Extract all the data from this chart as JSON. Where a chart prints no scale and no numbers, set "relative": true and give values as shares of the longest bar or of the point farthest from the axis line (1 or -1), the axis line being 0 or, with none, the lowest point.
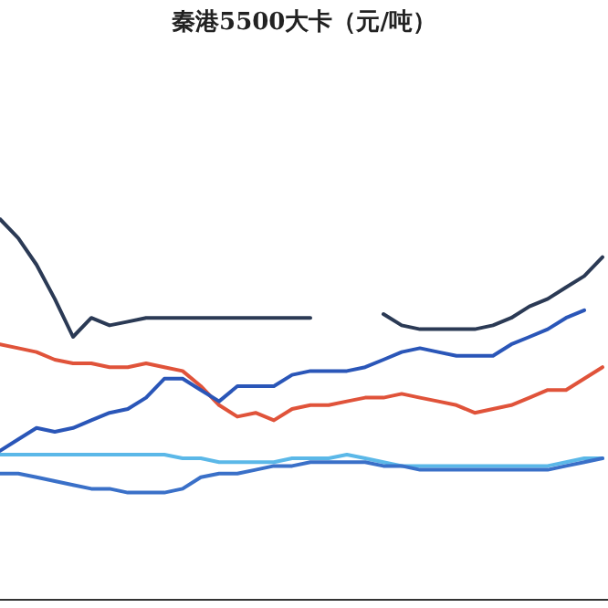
{
  "chart_data": {
    "type": "line",
    "title": "秦港5500大卡（元/吨）",
    "relative": true,
    "categories": [
      null,
      null,
      null,
      null,
      null,
      null,
      null,
      null,
      null,
      null,
      null,
      null,
      null,
      null,
      null,
      null,
      null,
      null,
      null,
      null,
      null,
      null,
      null,
      null,
      null,
      null,
      null,
      null,
      null,
      null,
      null,
      null,
      null,
      null
    ],
    "series": [
      {
        "color": "#2b3a55",
        "values": [
          1.0,
          0.95,
          0.88,
          0.79,
          0.69,
          0.74,
          0.72,
          0.73,
          0.74,
          0.74,
          0.74,
          0.74,
          0.74,
          0.74,
          0.74,
          0.74,
          0.74,
          0.74,
          null,
          null,
          null,
          0.75,
          0.72,
          0.71,
          0.71,
          0.71,
          0.71,
          0.72,
          0.74,
          0.77,
          0.79,
          0.82,
          0.85,
          0.9
        ]
      },
      {
        "color": "#e0533a",
        "values": [
          0.67,
          0.66,
          0.65,
          0.63,
          0.62,
          0.62,
          0.61,
          0.61,
          0.62,
          0.61,
          0.6,
          0.56,
          0.51,
          0.48,
          0.49,
          0.47,
          0.5,
          0.51,
          0.51,
          0.52,
          0.53,
          0.53,
          0.54,
          0.53,
          0.52,
          0.51,
          0.49,
          0.5,
          0.51,
          0.53,
          0.55,
          0.55,
          0.58,
          0.61
        ]
      },
      {
        "color": "#2a56b8",
        "values": [
          0.39,
          0.42,
          0.45,
          0.44,
          0.45,
          0.47,
          0.49,
          0.5,
          0.53,
          0.58,
          0.58,
          0.55,
          0.52,
          0.56,
          0.56,
          0.56,
          0.59,
          0.6,
          0.6,
          0.6,
          0.61,
          0.63,
          0.65,
          0.66,
          0.65,
          0.64,
          0.64,
          0.64,
          0.67,
          0.69,
          0.71,
          0.74,
          0.76,
          null
        ]
      },
      {
        "color": "#5bb8e8",
        "values": [
          0.38,
          0.38,
          0.38,
          0.38,
          0.38,
          0.38,
          0.38,
          0.38,
          0.38,
          0.38,
          0.37,
          0.37,
          0.36,
          0.36,
          0.36,
          0.36,
          0.37,
          0.37,
          0.37,
          0.38,
          0.37,
          0.36,
          0.35,
          0.35,
          0.35,
          0.35,
          0.35,
          0.35,
          0.35,
          0.35,
          0.35,
          0.36,
          0.37,
          0.37
        ]
      },
      {
        "color": "#3a70c8",
        "values": [
          0.33,
          0.33,
          0.32,
          0.31,
          0.3,
          0.29,
          0.29,
          0.28,
          0.28,
          0.28,
          0.29,
          0.32,
          0.33,
          0.33,
          0.34,
          0.35,
          0.35,
          0.36,
          0.36,
          0.36,
          0.36,
          0.35,
          0.35,
          0.34,
          0.34,
          0.34,
          0.34,
          0.34,
          0.34,
          0.34,
          0.34,
          0.35,
          0.36,
          0.37
        ]
      }
    ]
  }
}
